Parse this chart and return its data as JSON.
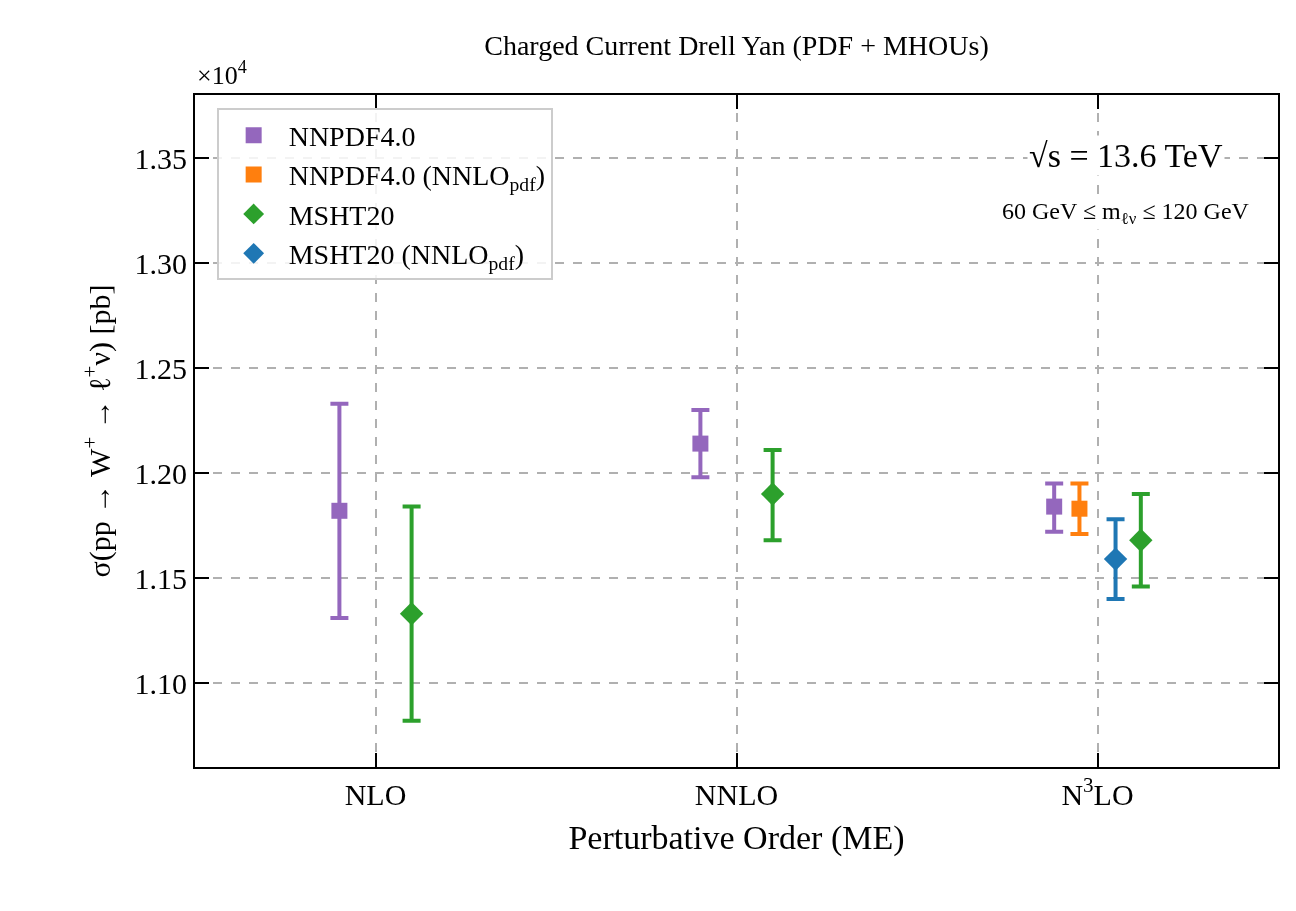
{
  "chart_data": {
    "type": "scatter",
    "title": "Charged Current Drell Yan (PDF + MHOUs)",
    "xlabel": "Perturbative Order (ME)",
    "ylabel": "σ(pp → W$^{+}$ → ℓ$^{+}$ν) [pb]",
    "categories": [
      "NLO",
      "NNLO",
      "N$^{3}$LO"
    ],
    "series": [
      {
        "name": "NNPDF4.0",
        "color": "#9467bd",
        "marker": "square",
        "values": [
          1.182,
          1.214,
          1.184
        ],
        "errors": [
          [
            1.131,
            1.233
          ],
          [
            1.198,
            1.23
          ],
          [
            1.172,
            1.195
          ]
        ]
      },
      {
        "name": "NNPDF4.0 (NNLO$_{pdf}$)",
        "color": "#ff7f0e",
        "marker": "square",
        "values": [
          null,
          null,
          1.183
        ],
        "errors": [
          null,
          null,
          [
            1.171,
            1.195
          ]
        ]
      },
      {
        "name": "MSHT20",
        "color": "#2ca02c",
        "marker": "diamond",
        "values": [
          1.133,
          1.19,
          1.168
        ],
        "errors": [
          [
            1.082,
            1.184
          ],
          [
            1.168,
            1.211
          ],
          [
            1.146,
            1.19
          ]
        ]
      },
      {
        "name": "MSHT20 (NNLO$_{pdf}$)",
        "color": "#1f77b4",
        "marker": "diamond",
        "values": [
          null,
          null,
          1.159
        ],
        "errors": [
          null,
          null,
          [
            1.14,
            1.178
          ]
        ]
      }
    ],
    "ylim": [
      1.06,
      1.38
    ],
    "yticks": [
      {
        "value": 1.1,
        "label": "1.10"
      },
      1.15,
      {
        "value": 1.2,
        "label": "1.20"
      },
      1.25,
      {
        "value": 1.3,
        "label": "1.30"
      },
      1.35
    ],
    "grid": true,
    "legend": "top left",
    "annotations": [
      "×10$^{4}$",
      "√s = 13.6 TeV",
      "60 GeV ≤ m$_{ℓν}$ ≤ 120 GeV"
    ]
  }
}
